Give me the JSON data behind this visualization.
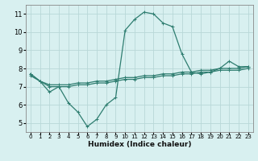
{
  "line1": {
    "x": [
      0,
      1,
      2,
      3,
      4,
      5,
      6,
      7,
      8,
      9,
      10,
      11,
      12,
      13,
      14,
      15,
      16,
      17,
      18,
      19,
      20,
      21,
      22,
      23
    ],
    "y": [
      7.7,
      7.3,
      6.7,
      7.0,
      6.1,
      5.6,
      4.8,
      5.2,
      6.0,
      6.4,
      10.1,
      10.7,
      11.1,
      11.0,
      10.5,
      10.3,
      8.8,
      7.8,
      7.7,
      7.8,
      8.0,
      8.4,
      8.1,
      8.1
    ]
  },
  "line2": {
    "x": [
      0,
      1,
      2,
      3,
      4,
      5,
      6,
      7,
      8,
      9,
      10,
      11,
      12,
      13,
      14,
      15,
      16,
      17,
      18,
      19,
      20,
      21,
      22,
      23
    ],
    "y": [
      7.7,
      7.3,
      7.1,
      7.1,
      7.1,
      7.2,
      7.2,
      7.3,
      7.3,
      7.4,
      7.5,
      7.5,
      7.6,
      7.6,
      7.7,
      7.7,
      7.8,
      7.8,
      7.9,
      7.9,
      8.0,
      8.0,
      8.0,
      8.1
    ]
  },
  "line3": {
    "x": [
      0,
      1,
      2,
      3,
      4,
      5,
      6,
      7,
      8,
      9,
      10,
      11,
      12,
      13,
      14,
      15,
      16,
      17,
      18,
      19,
      20,
      21,
      22,
      23
    ],
    "y": [
      7.6,
      7.3,
      7.0,
      7.0,
      7.0,
      7.1,
      7.1,
      7.2,
      7.2,
      7.3,
      7.4,
      7.4,
      7.5,
      7.5,
      7.6,
      7.6,
      7.7,
      7.7,
      7.8,
      7.8,
      7.9,
      7.9,
      7.9,
      8.0
    ]
  },
  "line_color": "#2e7d70",
  "bg_color": "#d8f0f0",
  "grid_color": "#b8d8d8",
  "xlabel": "Humidex (Indice chaleur)",
  "ylim": [
    4.5,
    11.5
  ],
  "xlim": [
    -0.5,
    23.5
  ],
  "yticks": [
    5,
    6,
    7,
    8,
    9,
    10,
    11
  ],
  "xticks": [
    0,
    1,
    2,
    3,
    4,
    5,
    6,
    7,
    8,
    9,
    10,
    11,
    12,
    13,
    14,
    15,
    16,
    17,
    18,
    19,
    20,
    21,
    22,
    23
  ],
  "marker": "+",
  "markersize": 3,
  "linewidth": 0.9
}
